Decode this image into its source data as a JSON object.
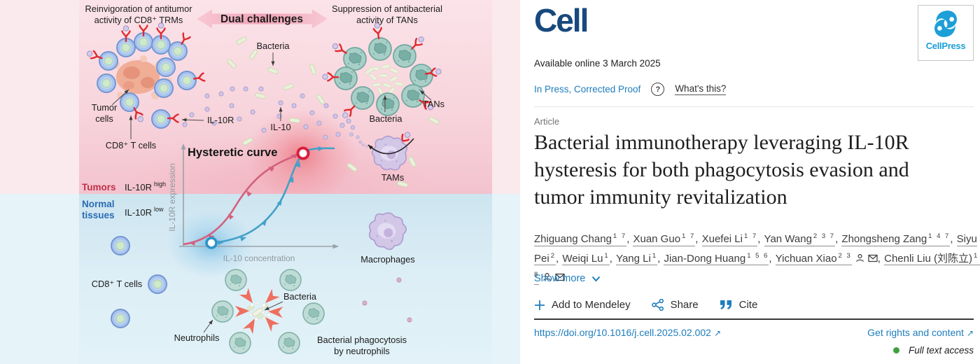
{
  "abstract": {
    "banner": {
      "label": "Dual challenges"
    },
    "top_left": {
      "line1": "Reinvigoration of antitumor",
      "line2": "activity of CD8⁺ TRMs"
    },
    "top_right": {
      "line1": "Suppression of antibacterial",
      "line2": "activity of TANs"
    },
    "labels": {
      "bacteria_top": "Bacteria",
      "tumor_cells_1": "Tumor",
      "tumor_cells_2": "cells",
      "cd8_top": "CD8⁺ T cells",
      "il10r": "IL-10R",
      "il10": "IL-10",
      "tans": "TANs",
      "bacteria_right": "Bacteria",
      "tams": "TAMs",
      "macrophages": "Macrophages",
      "cd8_bottom": "CD8⁺ T cells",
      "neutrophils": "Neutrophils",
      "bacteria_bottom": "Bacteria",
      "phago_1": "Bacterial phagocytosis",
      "phago_2": "by neutrophils",
      "tumors": "Tumors",
      "il10r_high_base": "IL-10R",
      "il10r_high_sup": "high",
      "normal_1": "Normal",
      "normal_2": "tissues",
      "il10r_low_base": "IL-10R",
      "il10r_low_sup": "low"
    },
    "plot": {
      "title": "Hysteretic curve",
      "x_label": "IL-10 concentration",
      "y_label": "IL-10R expression"
    },
    "colors": {
      "tumor_red": "#c13049",
      "normal_blue": "#2a6cb3",
      "curve_pink": "#d4607c",
      "curve_blue": "#44a0c8"
    }
  },
  "journal": {
    "logo_text": "Cell",
    "publisher_logo_text": "CellPress"
  },
  "meta": {
    "available_online": "Available online 3 March 2025",
    "status": "In Press, Corrected Proof",
    "help_glyph": "?",
    "whats_this": "What's this?",
    "article_type": "Article"
  },
  "title": {
    "line1": "Bacterial immunotherapy leveraging IL-10R",
    "line2": "hysteresis for both phagocytosis evasion and",
    "line3": "tumor immunity revitalization"
  },
  "authors": {
    "list": [
      {
        "name": "Zhiguang Chang",
        "sups": "1 7"
      },
      {
        "name": "Xuan Guo",
        "sups": "1 7"
      },
      {
        "name": "Xuefei Li",
        "sups": "1 7"
      },
      {
        "name": "Yan Wang",
        "sups": "2 3 7"
      },
      {
        "name": "Zhongsheng Zang",
        "sups": "1 4 7"
      },
      {
        "name": "Siyu Pei",
        "sups": "2"
      },
      {
        "name": "Weiqi Lu",
        "sups": "1"
      },
      {
        "name": "Yang Li",
        "sups": "1"
      },
      {
        "name": "Jian-Dong Huang",
        "sups": "1 5 6"
      },
      {
        "name": "Yichuan Xiao",
        "sups": "2 3",
        "person": true,
        "email": true
      },
      {
        "name": "Chenli Liu (刘陈立)",
        "sups": "1 3 8",
        "person": true,
        "email": true
      }
    ]
  },
  "show_more_label": "Show more",
  "actions": {
    "mendeley": "Add to Mendeley",
    "share": "Share",
    "cite": "Cite"
  },
  "footer": {
    "doi": "https://doi.org/10.1016/j.cell.2025.02.002",
    "rights": "Get rights and content",
    "access": "Full text access",
    "external_arrow": "↗"
  }
}
